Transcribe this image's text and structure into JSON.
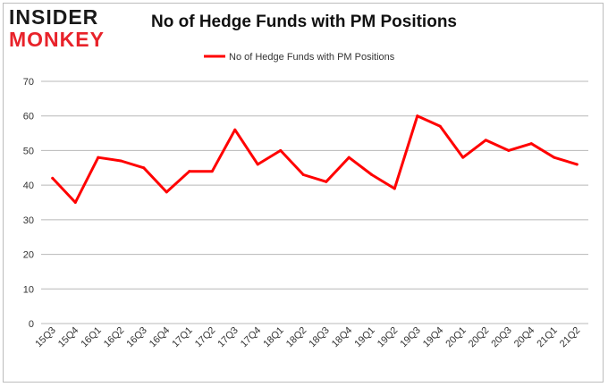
{
  "logo": {
    "line1": "INSIDER",
    "line2": "MONKEY"
  },
  "chart_data": {
    "type": "line",
    "title": "No of Hedge Funds with PM Positions",
    "xlabel": "",
    "ylabel": "",
    "ylim": [
      0,
      70
    ],
    "yticks": [
      0,
      10,
      20,
      30,
      40,
      50,
      60,
      70
    ],
    "grid": true,
    "legend": "top-center",
    "categories": [
      "15Q3",
      "15Q4",
      "16Q1",
      "16Q2",
      "16Q3",
      "16Q4",
      "17Q1",
      "17Q2",
      "17Q3",
      "17Q4",
      "18Q1",
      "18Q2",
      "18Q3",
      "18Q4",
      "19Q1",
      "19Q2",
      "19Q3",
      "19Q4",
      "20Q1",
      "20Q2",
      "20Q3",
      "20Q4",
      "21Q1",
      "21Q2"
    ],
    "series": [
      {
        "name": "No of Hedge Funds with PM Positions",
        "color": "#ff0000",
        "values": [
          42,
          35,
          48,
          47,
          45,
          38,
          44,
          44,
          56,
          46,
          50,
          43,
          41,
          48,
          43,
          39,
          60,
          57,
          48,
          53,
          50,
          52,
          48,
          46
        ]
      }
    ]
  }
}
